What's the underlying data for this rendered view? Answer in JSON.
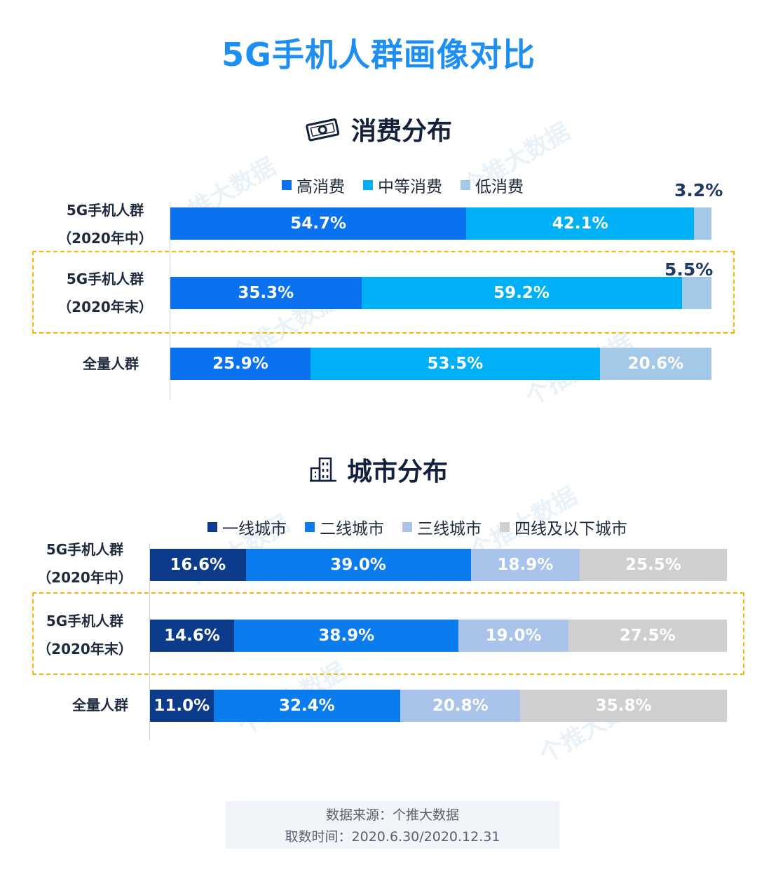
{
  "title": "5G手机人群画像对比",
  "watermark_text": "个推大数据",
  "colors": {
    "title": "#1d8ff2",
    "consumption": [
      "#0a72ee",
      "#00b0f6",
      "#a4c8e8"
    ],
    "city": [
      "#0d3b8c",
      "#0a7cee",
      "#a9c3ea",
      "#cfcfd2"
    ],
    "highlight_border": "#f4b400"
  },
  "charts": [
    {
      "section_title": "消费分布",
      "icon": "money-icon",
      "legend": [
        "高消费",
        "中等消费",
        "低消费"
      ],
      "rows": [
        {
          "label_line1": "5G手机人群",
          "label_line2": "（2020年中）",
          "values": [
            "54.7%",
            "42.1%",
            "3.2%"
          ],
          "highlighted": false
        },
        {
          "label_line1": "5G手机人群",
          "label_line2": "（2020年末）",
          "values": [
            "35.3%",
            "59.2%",
            "5.5%"
          ],
          "highlighted": true
        },
        {
          "label_line1": "全量人群",
          "label_line2": "",
          "values": [
            "25.9%",
            "53.5%",
            "20.6%"
          ],
          "highlighted": false
        }
      ]
    },
    {
      "section_title": "城市分布",
      "icon": "building-icon",
      "legend": [
        "一线城市",
        "二线城市",
        "三线城市",
        "四线及以下城市"
      ],
      "rows": [
        {
          "label_line1": "5G手机人群",
          "label_line2": "（2020年中）",
          "values": [
            "16.6%",
            "39.0%",
            "18.9%",
            "25.5%"
          ],
          "highlighted": false
        },
        {
          "label_line1": "5G手机人群",
          "label_line2": "（2020年末）",
          "values": [
            "14.6%",
            "38.9%",
            "19.0%",
            "27.5%"
          ],
          "highlighted": true
        },
        {
          "label_line1": "全量人群",
          "label_line2": "",
          "values": [
            "11.0%",
            "32.4%",
            "20.8%",
            "35.8%"
          ],
          "highlighted": false
        }
      ]
    }
  ],
  "chart_data": [
    {
      "type": "bar",
      "stacked": true,
      "orientation": "horizontal",
      "title": "消费分布",
      "categories": [
        "5G手机人群（2020年中）",
        "5G手机人群（2020年末）",
        "全量人群"
      ],
      "series": [
        {
          "name": "高消费",
          "values": [
            54.7,
            35.3,
            25.9
          ]
        },
        {
          "name": "中等消费",
          "values": [
            42.1,
            59.2,
            53.5
          ]
        },
        {
          "name": "低消费",
          "values": [
            3.2,
            5.5,
            20.6
          ]
        }
      ],
      "xlim": [
        0,
        100
      ],
      "legend": "top"
    },
    {
      "type": "bar",
      "stacked": true,
      "orientation": "horizontal",
      "title": "城市分布",
      "categories": [
        "5G手机人群（2020年中）",
        "5G手机人群（2020年末）",
        "全量人群"
      ],
      "series": [
        {
          "name": "一线城市",
          "values": [
            16.6,
            14.6,
            11.0
          ]
        },
        {
          "name": "二线城市",
          "values": [
            39.0,
            38.9,
            32.4
          ]
        },
        {
          "name": "三线城市",
          "values": [
            18.9,
            19.0,
            20.8
          ]
        },
        {
          "name": "四线及以下城市",
          "values": [
            25.5,
            27.5,
            35.8
          ]
        }
      ],
      "xlim": [
        0,
        100
      ],
      "legend": "top"
    }
  ],
  "footer": {
    "source": "数据来源：个推大数据",
    "date": "取数时间：2020.6.30/2020.12.31"
  }
}
